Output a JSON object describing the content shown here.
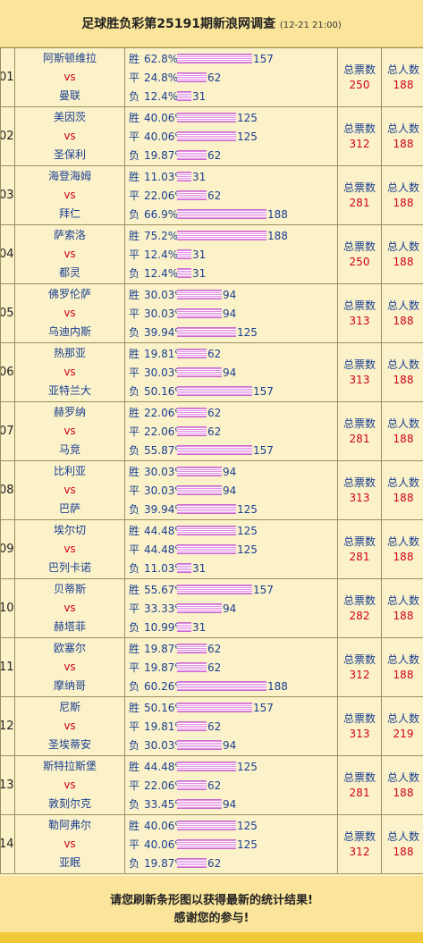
{
  "page": {
    "title": "足球胜负彩第25191期新浪网调查",
    "date": "(12-21 21:00)"
  },
  "labels": {
    "win": "胜",
    "draw": "平",
    "loss": "负",
    "vs": "vs",
    "total_votes": "总票数",
    "total_people": "总人数"
  },
  "matches": [
    {
      "num": "01",
      "home": "阿斯顿维拉",
      "away": "曼联",
      "win": {
        "pct": "62.8%",
        "count": "157"
      },
      "draw": {
        "pct": "24.8%",
        "count": "62"
      },
      "loss": {
        "pct": "12.4%",
        "count": "31"
      },
      "total_votes": "250",
      "total_people": "188"
    },
    {
      "num": "02",
      "home": "美因茨",
      "away": "圣保利",
      "win": {
        "pct": "40.06%",
        "count": "125"
      },
      "draw": {
        "pct": "40.06%",
        "count": "125"
      },
      "loss": {
        "pct": "19.87%",
        "count": "62"
      },
      "total_votes": "312",
      "total_people": "188"
    },
    {
      "num": "03",
      "home": "海登海姆",
      "away": "拜仁",
      "win": {
        "pct": "11.03%",
        "count": "31"
      },
      "draw": {
        "pct": "22.06%",
        "count": "62"
      },
      "loss": {
        "pct": "66.9%",
        "count": "188"
      },
      "total_votes": "281",
      "total_people": "188"
    },
    {
      "num": "04",
      "home": "萨索洛",
      "away": "都灵",
      "win": {
        "pct": "75.2%",
        "count": "188"
      },
      "draw": {
        "pct": "12.4%",
        "count": "31"
      },
      "loss": {
        "pct": "12.4%",
        "count": "31"
      },
      "total_votes": "250",
      "total_people": "188"
    },
    {
      "num": "05",
      "home": "佛罗伦萨",
      "away": "乌迪内斯",
      "win": {
        "pct": "30.03%",
        "count": "94"
      },
      "draw": {
        "pct": "30.03%",
        "count": "94"
      },
      "loss": {
        "pct": "39.94%",
        "count": "125"
      },
      "total_votes": "313",
      "total_people": "188"
    },
    {
      "num": "06",
      "home": "热那亚",
      "away": "亚特兰大",
      "win": {
        "pct": "19.81%",
        "count": "62"
      },
      "draw": {
        "pct": "30.03%",
        "count": "94"
      },
      "loss": {
        "pct": "50.16%",
        "count": "157"
      },
      "total_votes": "313",
      "total_people": "188"
    },
    {
      "num": "07",
      "home": "赫罗纳",
      "away": "马竞",
      "win": {
        "pct": "22.06%",
        "count": "62"
      },
      "draw": {
        "pct": "22.06%",
        "count": "62"
      },
      "loss": {
        "pct": "55.87%",
        "count": "157"
      },
      "total_votes": "281",
      "total_people": "188"
    },
    {
      "num": "08",
      "home": "比利亚",
      "away": "巴萨",
      "win": {
        "pct": "30.03%",
        "count": "94"
      },
      "draw": {
        "pct": "30.03%",
        "count": "94"
      },
      "loss": {
        "pct": "39.94%",
        "count": "125"
      },
      "total_votes": "313",
      "total_people": "188"
    },
    {
      "num": "09",
      "home": "埃尔切",
      "away": "巴列卡诺",
      "win": {
        "pct": "44.48%",
        "count": "125"
      },
      "draw": {
        "pct": "44.48%",
        "count": "125"
      },
      "loss": {
        "pct": "11.03%",
        "count": "31"
      },
      "total_votes": "281",
      "total_people": "188"
    },
    {
      "num": "10",
      "home": "贝蒂斯",
      "away": "赫塔菲",
      "win": {
        "pct": "55.67%",
        "count": "157"
      },
      "draw": {
        "pct": "33.33%",
        "count": "94"
      },
      "loss": {
        "pct": "10.99%",
        "count": "31"
      },
      "total_votes": "282",
      "total_people": "188"
    },
    {
      "num": "11",
      "home": "欧塞尔",
      "away": "摩纳哥",
      "win": {
        "pct": "19.87%",
        "count": "62"
      },
      "draw": {
        "pct": "19.87%",
        "count": "62"
      },
      "loss": {
        "pct": "60.26%",
        "count": "188"
      },
      "total_votes": "312",
      "total_people": "188"
    },
    {
      "num": "12",
      "home": "尼斯",
      "away": "圣埃蒂安",
      "win": {
        "pct": "50.16%",
        "count": "157"
      },
      "draw": {
        "pct": "19.81%",
        "count": "62"
      },
      "loss": {
        "pct": "30.03%",
        "count": "94"
      },
      "total_votes": "313",
      "total_people": "219"
    },
    {
      "num": "13",
      "home": "斯特拉斯堡",
      "away": "敦刻尔克",
      "win": {
        "pct": "44.48%",
        "count": "125"
      },
      "draw": {
        "pct": "22.06%",
        "count": "62"
      },
      "loss": {
        "pct": "33.45%",
        "count": "94"
      },
      "total_votes": "281",
      "total_people": "188"
    },
    {
      "num": "14",
      "home": "勒阿弗尔",
      "away": "亚眠",
      "win": {
        "pct": "40.06%",
        "count": "125"
      },
      "draw": {
        "pct": "40.06%",
        "count": "125"
      },
      "loss": {
        "pct": "19.87%",
        "count": "62"
      },
      "total_votes": "312",
      "total_people": "188"
    }
  ],
  "footer": {
    "line1": "请您刷新条形图以获得最新的统计结果!",
    "line2": "感谢您的参与!"
  }
}
